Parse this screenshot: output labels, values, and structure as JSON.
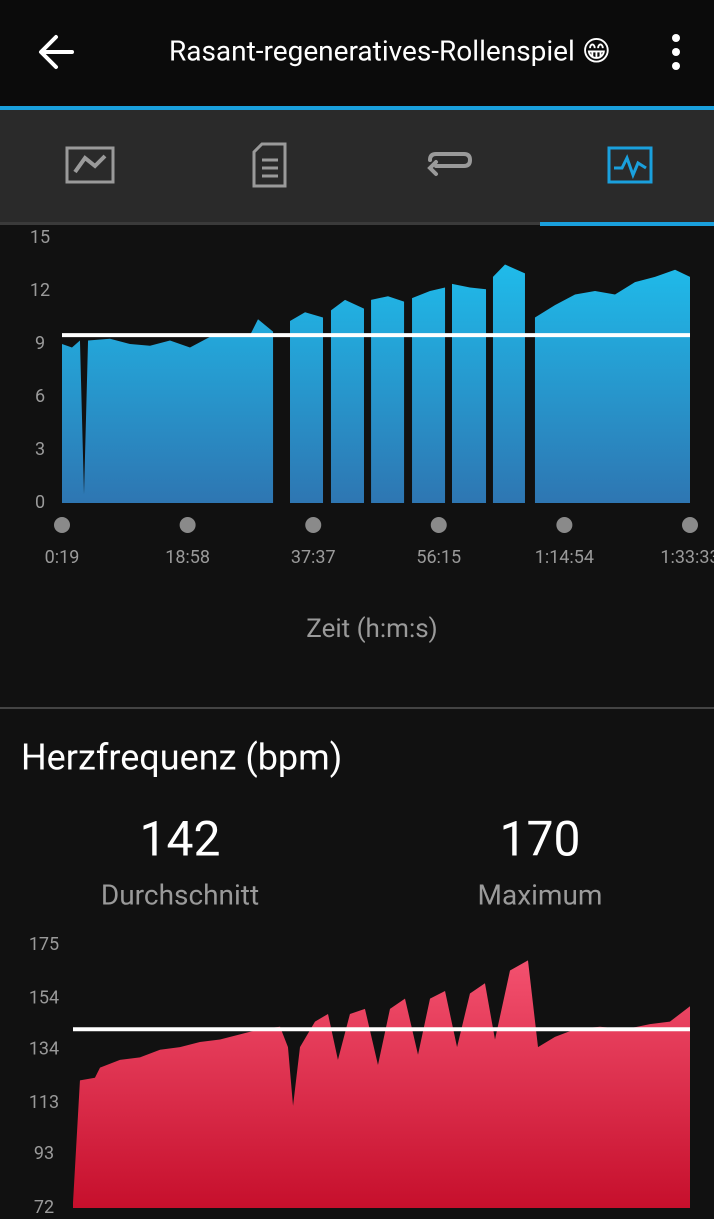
{
  "header": {
    "title": "Rasant-regeneratives-Rollenspiel 😁"
  },
  "chart_data": [
    {
      "type": "area",
      "color": [
        "#1fbbea",
        "#2e76b2"
      ],
      "average": 9.5,
      "average_color": "#ffffff",
      "x": [
        19,
        108,
        179,
        215,
        251,
        447,
        625,
        803,
        981,
        1159,
        1337,
        1516,
        1694,
        1765,
        1899,
        null,
        2050,
        2184,
        2344,
        null,
        2415,
        2540,
        2709,
        null,
        2772,
        2923,
        3066,
        null,
        3137,
        3297,
        3431,
        null,
        3493,
        3653,
        3796,
        null,
        3858,
        3965,
        4143,
        null,
        4232,
        4410,
        4589,
        4767,
        4945,
        5123,
        5301,
        5480,
        5613
      ],
      "values": [
        9.0,
        8.8,
        9.2,
        0.5,
        9.2,
        9.3,
        9.0,
        8.9,
        9.2,
        8.8,
        9.4,
        9.6,
        9.5,
        10.4,
        9.7,
        null,
        10.3,
        10.8,
        10.5,
        null,
        10.9,
        11.5,
        11.0,
        null,
        11.5,
        11.7,
        11.4,
        null,
        11.6,
        12.0,
        12.2,
        null,
        12.4,
        12.2,
        12.1,
        null,
        12.8,
        13.5,
        13.0,
        null,
        10.5,
        11.2,
        11.8,
        12.0,
        11.8,
        12.5,
        12.8,
        13.2,
        12.8
      ],
      "xlim": [
        19,
        5613
      ],
      "xticks": [
        {
          "value": 19,
          "label": "0:19"
        },
        {
          "value": 1138,
          "label": "18:58"
        },
        {
          "value": 2257,
          "label": "37:37"
        },
        {
          "value": 3375,
          "label": "56:15"
        },
        {
          "value": 4494,
          "label": "1:14:54"
        },
        {
          "value": 5613,
          "label": "1:33:33"
        }
      ],
      "ylim": [
        0,
        15
      ],
      "yticks": [
        0,
        3,
        6,
        9,
        12,
        15
      ],
      "x_label": "Zeit (h:m:s)"
    },
    {
      "type": "area",
      "color": [
        "#f3516f",
        "#c60f2c"
      ],
      "average_color": "#ffffff",
      "x": [
        19,
        82,
        218,
        264,
        445,
        626,
        808,
        989,
        1170,
        1352,
        1533,
        1714,
        1896,
        1968,
        2014,
        2077,
        2213,
        2331,
        2421,
        2530,
        2666,
        2784,
        2893,
        3029,
        3147,
        3256,
        3392,
        3501,
        3618,
        3754,
        3845,
        3981,
        4144,
        4235,
        4389,
        4570,
        4797,
        5023,
        5250,
        5431,
        5613
      ],
      "values": [
        74,
        122,
        123,
        127,
        130,
        131,
        134,
        135,
        137,
        138,
        140,
        142,
        143,
        135,
        112,
        135,
        145,
        148,
        130,
        148,
        150,
        128,
        150,
        154,
        132,
        154,
        157,
        135,
        156,
        160,
        138,
        165,
        169,
        135,
        139,
        142,
        143,
        142,
        144,
        145,
        151
      ],
      "xlim": [
        19,
        5613
      ],
      "ylim": [
        72,
        175
      ],
      "yticks": [
        72,
        93,
        113,
        134,
        154,
        175
      ]
    }
  ],
  "section_title": "Herzfrequenz (bpm)",
  "stats": [
    {
      "value": 142,
      "label": "Durchschnitt"
    },
    {
      "value": 170,
      "label": "Maximum"
    }
  ]
}
